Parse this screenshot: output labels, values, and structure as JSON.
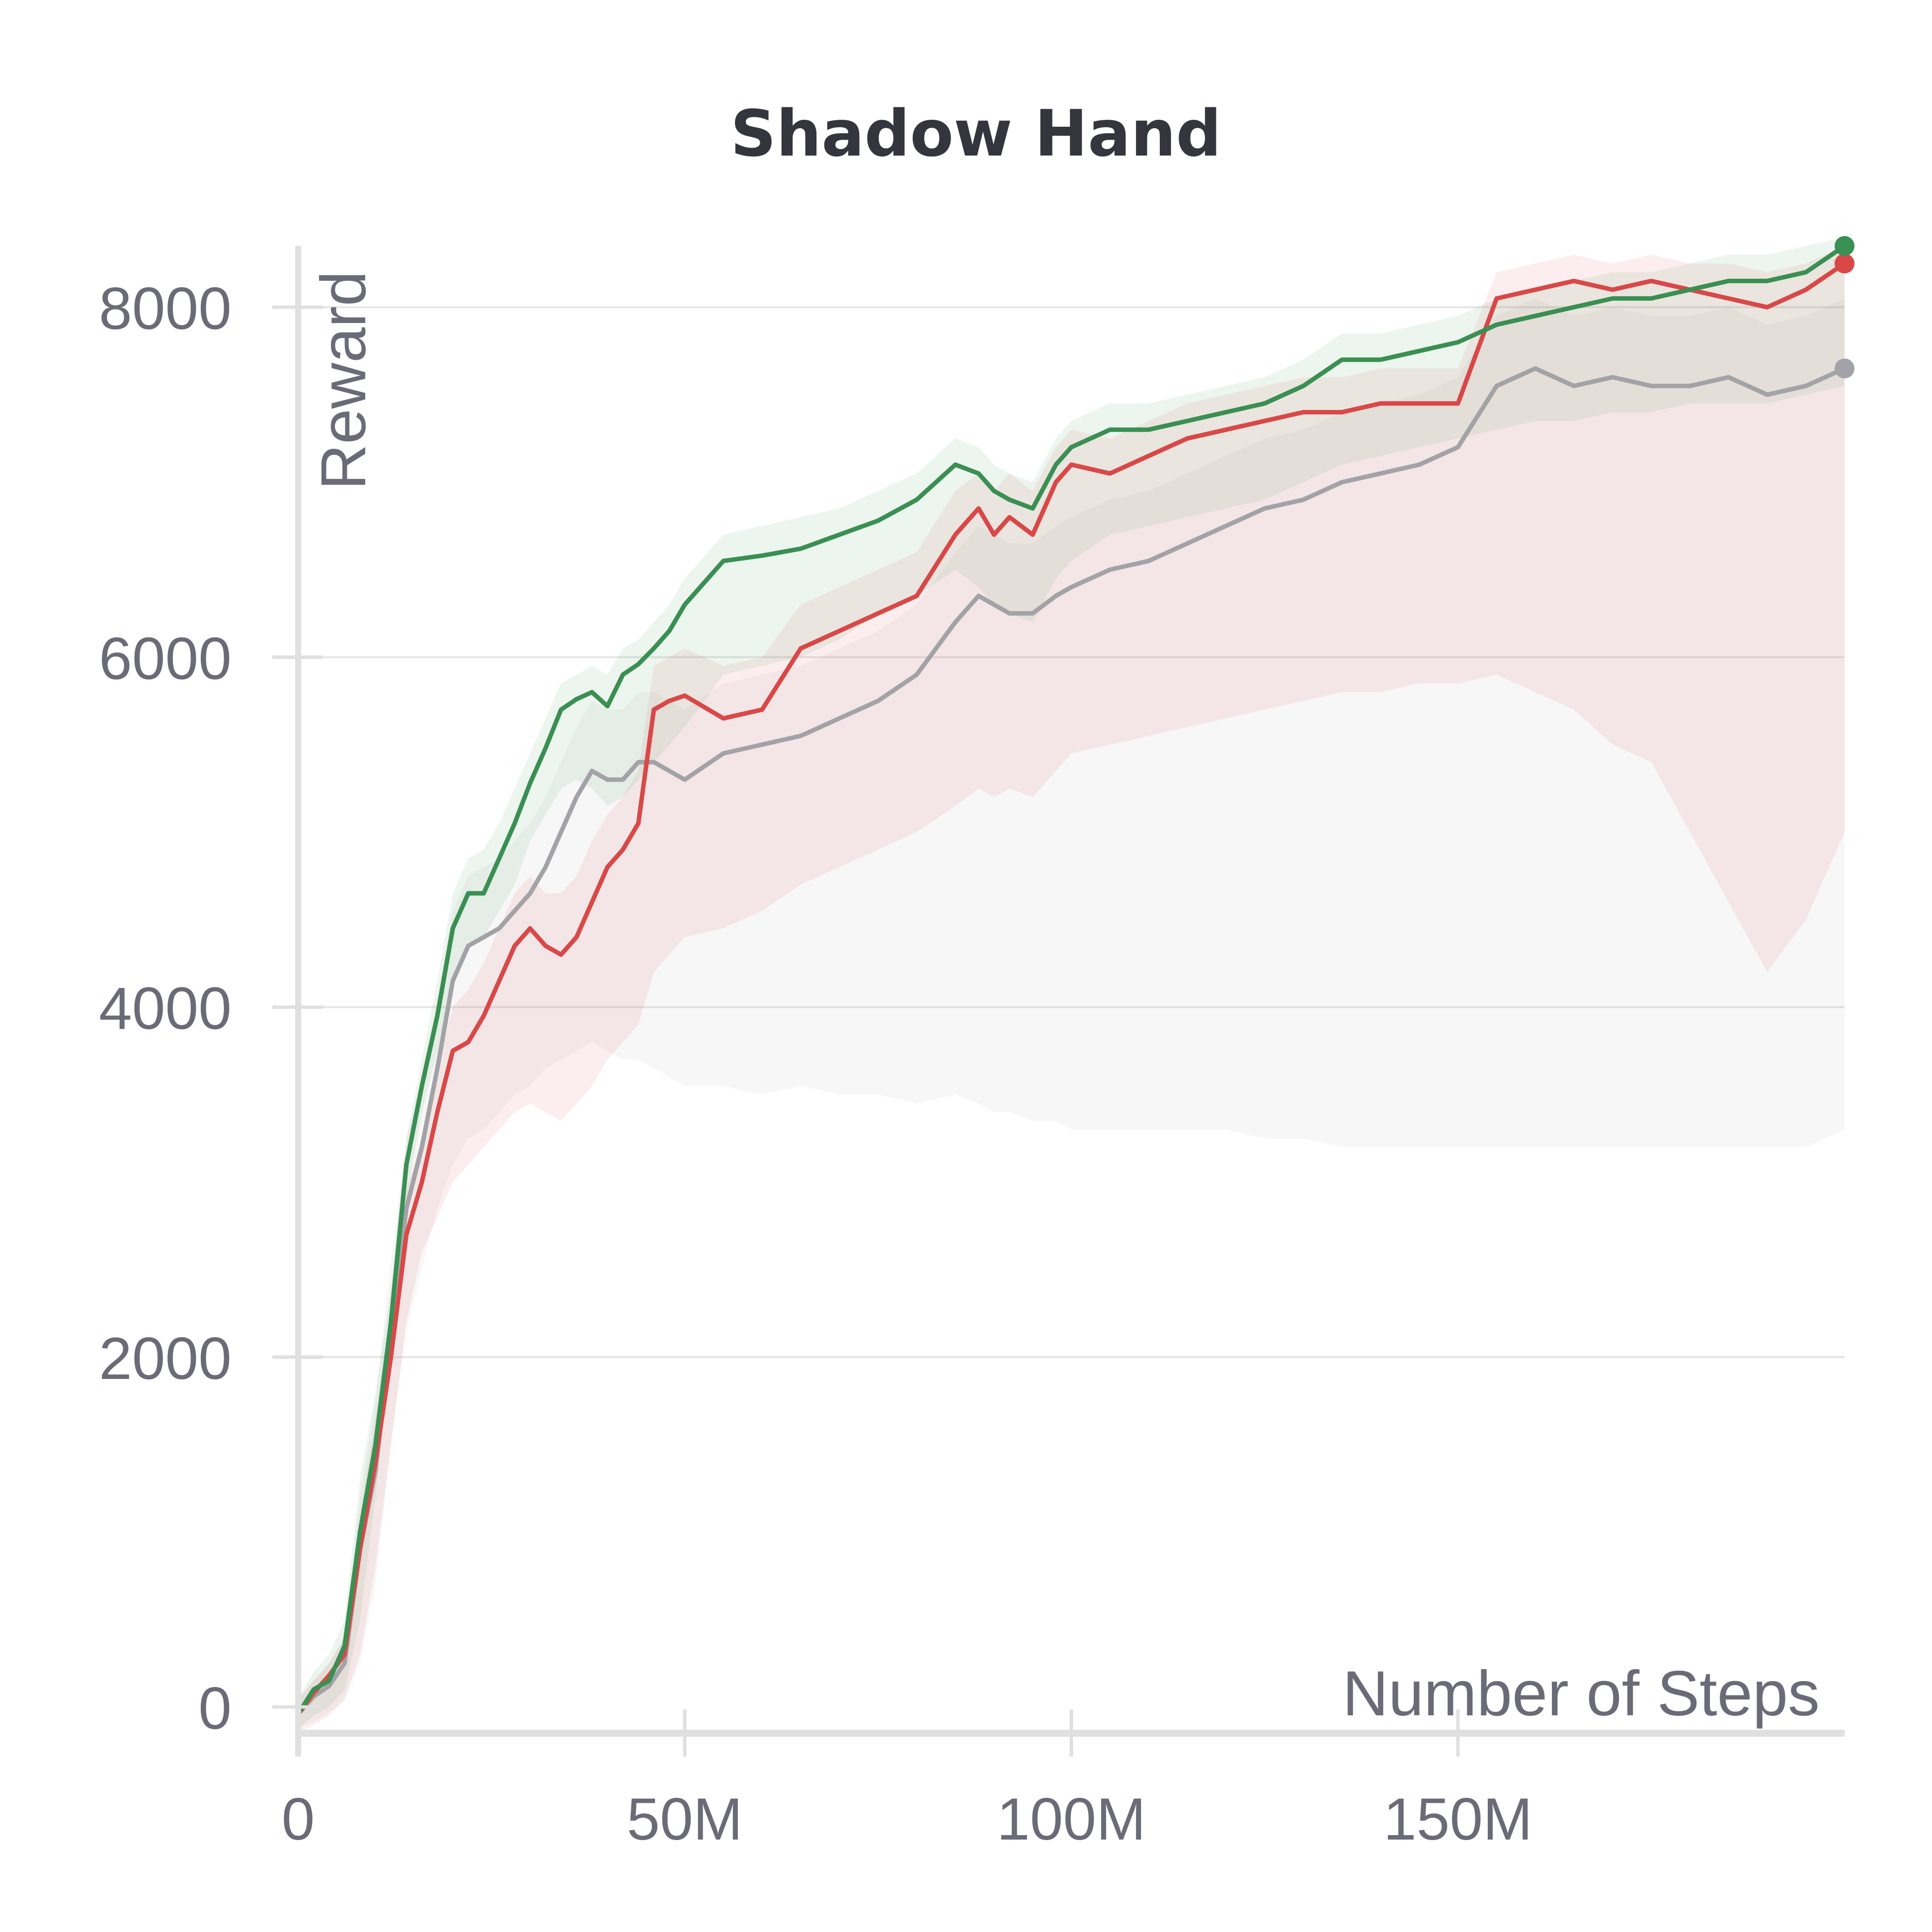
{
  "colors": {
    "background": "#ffffff",
    "grid": "#e6e6e6",
    "axis": "#e0e0e0",
    "text": "#6b6b78",
    "title": "#35353d"
  },
  "chart_data": {
    "type": "line",
    "title": "Shadow Hand",
    "xlabel": "Number of Steps",
    "ylabel": "Reward",
    "xlim": [
      0,
      200000000
    ],
    "ylim": [
      -150,
      8350
    ],
    "xticks": [
      0,
      50000000,
      100000000,
      150000000
    ],
    "xtick_labels": [
      "0",
      "50M",
      "100M",
      "150M"
    ],
    "yticks": [
      0,
      2000,
      4000,
      6000,
      8000
    ],
    "ytick_labels": [
      "0",
      "2000",
      "4000",
      "6000",
      "8000"
    ],
    "grid": "horizontal",
    "legend": "none",
    "x_unit": "steps",
    "x": [
      0,
      2000000,
      4000000,
      6000000,
      8000000,
      10000000,
      12000000,
      14000000,
      16000000,
      18000000,
      20000000,
      22000000,
      24000000,
      26000000,
      28000000,
      30000000,
      32000000,
      34000000,
      36000000,
      38000000,
      40000000,
      42000000,
      44000000,
      46000000,
      48000000,
      50000000,
      55000000,
      60000000,
      65000000,
      70000000,
      75000000,
      80000000,
      85000000,
      88000000,
      90000000,
      92000000,
      95000000,
      98000000,
      100000000,
      105000000,
      110000000,
      115000000,
      120000000,
      125000000,
      130000000,
      135000000,
      140000000,
      145000000,
      150000000,
      155000000,
      160000000,
      165000000,
      170000000,
      175000000,
      180000000,
      185000000,
      190000000,
      195000000,
      200000000
    ],
    "series": [
      {
        "color": "#3a8f52",
        "values": [
          -40,
          100,
          150,
          350,
          1000,
          1500,
          2200,
          3100,
          3550,
          3950,
          4450,
          4650,
          4650,
          4850,
          5050,
          5280,
          5480,
          5700,
          5760,
          5800,
          5720,
          5900,
          5960,
          6050,
          6150,
          6300,
          6550,
          6580,
          6620,
          6700,
          6780,
          6900,
          7100,
          7050,
          6950,
          6900,
          6850,
          7100,
          7200,
          7300,
          7300,
          7350,
          7400,
          7450,
          7550,
          7700,
          7700,
          7750,
          7800,
          7900,
          7950,
          8000,
          8050,
          8050,
          8100,
          8150,
          8150,
          8200,
          8350
        ],
        "lower": [
          -120,
          -50,
          0,
          100,
          500,
          1200,
          2000,
          2900,
          3400,
          3750,
          4150,
          4350,
          4400,
          4550,
          4700,
          4950,
          5100,
          5250,
          5300,
          5250,
          5150,
          5200,
          5300,
          5400,
          5500,
          5600,
          5900,
          5950,
          6000,
          6100,
          6250,
          6350,
          6500,
          6400,
          6300,
          6250,
          6200,
          6450,
          6550,
          6700,
          6750,
          6800,
          6850,
          6900,
          7000,
          7100,
          7150,
          7200,
          7250,
          7300,
          7350,
          7350,
          7400,
          7400,
          7450,
          7450,
          7450,
          7500,
          7550
        ],
        "upper": [
          50,
          200,
          300,
          500,
          1300,
          1800,
          2400,
          3250,
          3700,
          4150,
          4650,
          4850,
          4900,
          5050,
          5250,
          5450,
          5650,
          5850,
          5900,
          5950,
          5900,
          6050,
          6100,
          6200,
          6300,
          6450,
          6700,
          6750,
          6800,
          6850,
          6950,
          7050,
          7250,
          7200,
          7100,
          7050,
          7000,
          7250,
          7350,
          7450,
          7450,
          7500,
          7550,
          7600,
          7700,
          7850,
          7850,
          7900,
          7950,
          8050,
          8100,
          8150,
          8200,
          8200,
          8250,
          8300,
          8300,
          8350,
          8400
        ]
      },
      {
        "color": "#d94848",
        "values": [
          -40,
          80,
          180,
          300,
          900,
          1400,
          2000,
          2700,
          3000,
          3400,
          3750,
          3800,
          3950,
          4150,
          4350,
          4450,
          4350,
          4300,
          4400,
          4600,
          4800,
          4900,
          5050,
          5700,
          5750,
          5780,
          5650,
          5700,
          6050,
          6150,
          6250,
          6350,
          6700,
          6850,
          6700,
          6800,
          6700,
          7000,
          7100,
          7050,
          7150,
          7250,
          7300,
          7350,
          7400,
          7400,
          7450,
          7450,
          7450,
          8050,
          8100,
          8150,
          8100,
          8150,
          8100,
          8050,
          8000,
          8100,
          8250
        ],
        "lower": [
          -150,
          -100,
          -50,
          50,
          300,
          800,
          1500,
          2200,
          2600,
          2800,
          3000,
          3100,
          3200,
          3300,
          3400,
          3450,
          3400,
          3350,
          3450,
          3550,
          3700,
          3800,
          3900,
          4200,
          4300,
          4400,
          4450,
          4550,
          4700,
          4800,
          4900,
          5000,
          5150,
          5250,
          5200,
          5250,
          5200,
          5350,
          5450,
          5500,
          5550,
          5600,
          5650,
          5700,
          5750,
          5800,
          5800,
          5850,
          5850,
          5900,
          5800,
          5700,
          5500,
          5400,
          5000,
          4600,
          4200,
          4500,
          5000
        ],
        "upper": [
          50,
          150,
          250,
          400,
          1100,
          1650,
          2300,
          2950,
          3250,
          3650,
          4000,
          4100,
          4250,
          4450,
          4650,
          4750,
          4650,
          4650,
          4750,
          4950,
          5100,
          5200,
          5350,
          5950,
          6000,
          6050,
          5950,
          6000,
          6300,
          6400,
          6500,
          6600,
          6950,
          7050,
          6950,
          7050,
          6950,
          7200,
          7300,
          7250,
          7350,
          7450,
          7500,
          7550,
          7600,
          7600,
          7650,
          7650,
          7650,
          8200,
          8250,
          8300,
          8250,
          8300,
          8250,
          8250,
          8200,
          8250,
          8350
        ]
      },
      {
        "color": "#a3a3a7",
        "values": [
          -40,
          60,
          120,
          250,
          900,
          1350,
          2150,
          2850,
          3200,
          3650,
          4150,
          4350,
          4400,
          4450,
          4550,
          4650,
          4800,
          5000,
          5200,
          5350,
          5300,
          5300,
          5400,
          5400,
          5350,
          5300,
          5450,
          5500,
          5550,
          5650,
          5750,
          5900,
          6200,
          6350,
          6300,
          6250,
          6250,
          6350,
          6400,
          6500,
          6550,
          6650,
          6750,
          6850,
          6900,
          7000,
          7050,
          7100,
          7200,
          7550,
          7650,
          7550,
          7600,
          7550,
          7550,
          7600,
          7500,
          7550,
          7650
        ],
        "lower": [
          -120,
          -80,
          -30,
          30,
          250,
          700,
          1500,
          2150,
          2500,
          2850,
          3100,
          3250,
          3300,
          3400,
          3500,
          3550,
          3650,
          3700,
          3750,
          3800,
          3750,
          3700,
          3700,
          3650,
          3600,
          3550,
          3550,
          3500,
          3550,
          3500,
          3500,
          3450,
          3500,
          3450,
          3400,
          3400,
          3350,
          3350,
          3300,
          3300,
          3300,
          3300,
          3300,
          3250,
          3250,
          3200,
          3200,
          3200,
          3200,
          3200,
          3200,
          3200,
          3200,
          3200,
          3200,
          3200,
          3200,
          3200,
          3300
        ],
        "upper": [
          40,
          150,
          250,
          400,
          1200,
          1750,
          2550,
          3250,
          3600,
          4050,
          4550,
          4750,
          4800,
          4850,
          4950,
          5050,
          5200,
          5400,
          5600,
          5750,
          5700,
          5700,
          5800,
          5800,
          5750,
          5700,
          5850,
          5900,
          5950,
          6050,
          6150,
          6300,
          6600,
          6750,
          6700,
          6650,
          6650,
          6750,
          6800,
          6900,
          6950,
          7050,
          7150,
          7250,
          7300,
          7400,
          7450,
          7500,
          7600,
          7950,
          8050,
          7950,
          8000,
          7950,
          7950,
          8000,
          7900,
          7950,
          8050
        ]
      }
    ]
  }
}
